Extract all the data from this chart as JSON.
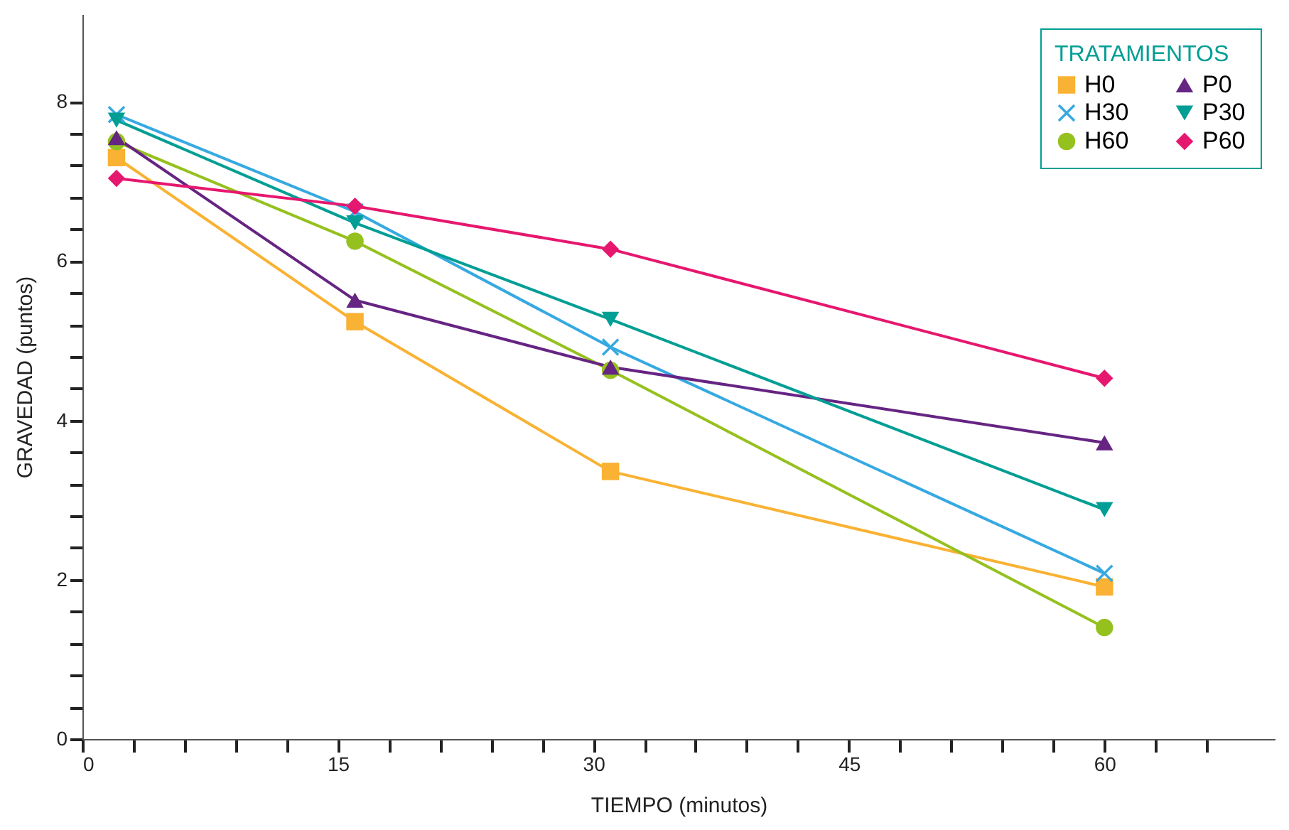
{
  "chart_data": {
    "type": "line",
    "xlabel": "TIEMPO (minutos)",
    "ylabel": "GRAVEDAD (puntos)",
    "legend_title": "TRATAMIENTOS",
    "legend": "top right",
    "grid": false,
    "x": [
      2,
      16,
      31,
      60
    ],
    "xlim": [
      0,
      70
    ],
    "xticks": [
      0,
      {
        "value": 3,
        "label": null
      },
      {
        "value": 6,
        "label": null
      },
      {
        "value": 9,
        "label": null
      },
      {
        "value": 12,
        "label": null
      },
      15,
      {
        "value": 18,
        "label": null
      },
      {
        "value": 21,
        "label": null
      },
      {
        "value": 24,
        "label": null
      },
      {
        "value": 27,
        "label": null
      },
      30,
      {
        "value": 33,
        "label": null
      },
      {
        "value": 36,
        "label": null
      },
      {
        "value": 39,
        "label": null
      },
      {
        "value": 42,
        "label": null
      },
      45,
      {
        "value": 48,
        "label": null
      },
      {
        "value": 51,
        "label": null
      },
      {
        "value": 54,
        "label": null
      },
      {
        "value": 57,
        "label": null
      },
      60,
      {
        "value": 63,
        "label": null
      },
      {
        "value": 66,
        "label": null
      }
    ],
    "ylim": [
      0,
      9.1
    ],
    "yticks": [
      0,
      {
        "value": 0.4,
        "label": null
      },
      {
        "value": 0.8,
        "label": null
      },
      {
        "value": 1.2,
        "label": null
      },
      {
        "value": 1.6,
        "label": null
      },
      2,
      {
        "value": 2.4,
        "label": null
      },
      {
        "value": 2.8,
        "label": null
      },
      {
        "value": 3.2,
        "label": null
      },
      {
        "value": 3.6,
        "label": null
      },
      4,
      {
        "value": 4.4,
        "label": null
      },
      {
        "value": 4.8,
        "label": null
      },
      {
        "value": 5.2,
        "label": null
      },
      {
        "value": 5.6,
        "label": null
      },
      6,
      {
        "value": 6.4,
        "label": null
      },
      {
        "value": 6.8,
        "label": null
      },
      {
        "value": 7.2,
        "label": null
      },
      {
        "value": 7.6,
        "label": null
      },
      8
    ],
    "series": [
      {
        "name": "H0",
        "color": "#f9b233",
        "marker": "square",
        "values": [
          7.3,
          5.24,
          3.36,
          1.91
        ]
      },
      {
        "name": "H30",
        "color": "#36a9e1",
        "marker": "cross",
        "values": [
          7.84,
          6.62,
          4.92,
          2.08
        ]
      },
      {
        "name": "H60",
        "color": "#95c11f",
        "marker": "circle",
        "values": [
          7.5,
          6.25,
          4.63,
          1.4
        ]
      },
      {
        "name": "P0",
        "color": "#662483",
        "marker": "triangle",
        "values": [
          7.55,
          5.51,
          4.67,
          3.72
        ]
      },
      {
        "name": "P30",
        "color": "#009e94",
        "marker": "triangle-down",
        "values": [
          7.77,
          6.48,
          5.27,
          2.88
        ]
      },
      {
        "name": "P60",
        "color": "#e6176f",
        "marker": "diamond",
        "values": [
          7.04,
          6.69,
          6.15,
          4.53
        ]
      }
    ]
  }
}
